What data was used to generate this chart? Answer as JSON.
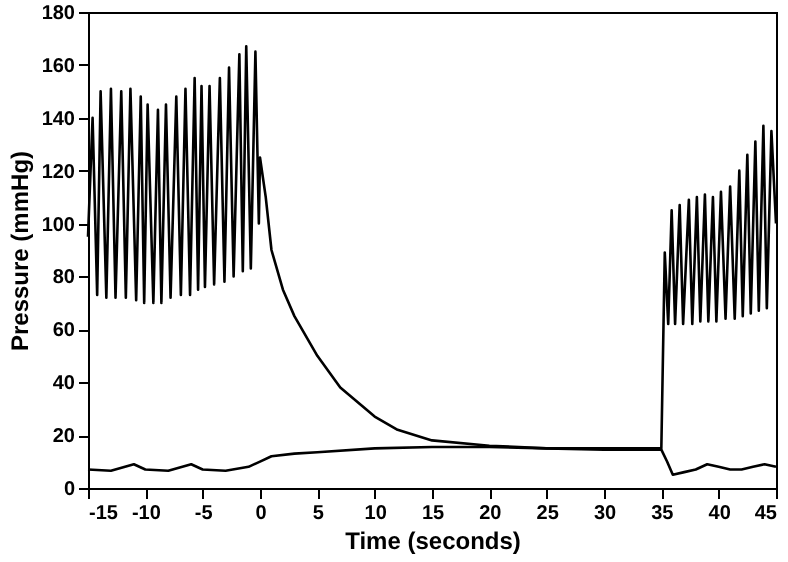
{
  "chart_data": {
    "type": "line",
    "xlabel": "Time (seconds)",
    "ylabel": "Pressure (mmHg)",
    "xlim": [
      -15,
      45
    ],
    "ylim": [
      0,
      180
    ],
    "xticks": [
      -15,
      -10,
      -5,
      0,
      5,
      10,
      15,
      20,
      25,
      30,
      35,
      40,
      45
    ],
    "yticks": [
      0,
      20,
      40,
      60,
      80,
      100,
      120,
      140,
      160,
      180
    ],
    "grid": false,
    "line_style": "solid",
    "marker": "none",
    "series": [
      {
        "color": "#000000",
        "x": [
          -15,
          -14.6,
          -14.2,
          -13.9,
          -13.4,
          -13.0,
          -12.6,
          -12.1,
          -11.7,
          -11.3,
          -10.8,
          -10.4,
          -10.1,
          -9.8,
          -9.3,
          -8.9,
          -8.6,
          -8.2,
          -7.8,
          -7.3,
          -6.9,
          -6.5,
          -6.1,
          -5.7,
          -5.4,
          -5.1,
          -4.8,
          -4.4,
          -4.0,
          -3.5,
          -3.1,
          -2.7,
          -2.3,
          -1.8,
          -1.5,
          -1.2,
          -0.8,
          -0.4,
          -0.1,
          0,
          0.5,
          1,
          2,
          3,
          5,
          7,
          10,
          12,
          15,
          20,
          25,
          30,
          35,
          35.3,
          35.6,
          35.9,
          36.2,
          36.6,
          36.9,
          37.4,
          37.7,
          38.1,
          38.4,
          38.8,
          39.1,
          39.5,
          39.8,
          40.2,
          40.6,
          41.0,
          41.4,
          41.8,
          42.1,
          42.5,
          42.8,
          43.2,
          43.5,
          43.9,
          44.2,
          44.6,
          45
        ],
        "values": [
          95,
          140,
          73,
          150,
          72,
          151,
          72,
          150,
          72,
          151,
          71,
          148,
          70,
          145,
          70,
          143,
          70,
          145,
          72,
          148,
          73,
          151,
          73,
          155,
          75,
          152,
          76,
          152,
          77,
          155,
          78,
          159,
          80,
          164,
          82,
          167,
          83,
          165,
          100,
          125,
          110,
          90,
          75,
          65,
          50,
          38,
          27,
          22,
          18,
          16,
          15,
          15,
          15,
          89,
          62,
          105,
          62,
          107,
          62,
          109,
          62,
          110,
          63,
          111,
          63,
          110,
          63,
          112,
          64,
          114,
          64,
          120,
          65,
          126,
          66,
          131,
          67,
          137,
          68,
          135,
          100
        ]
      },
      {
        "color": "#000000",
        "x": [
          -15,
          -13,
          -11,
          -10,
          -8,
          -6,
          -5,
          -3,
          -1,
          0,
          1,
          3,
          5,
          10,
          15,
          20,
          25,
          30,
          35,
          35.5,
          36,
          37,
          38,
          39,
          40,
          41,
          42,
          43,
          44,
          45
        ],
        "values": [
          7,
          6.5,
          9,
          7,
          6.5,
          9,
          7,
          6.5,
          8,
          10,
          12,
          13,
          13.5,
          15,
          15.5,
          15.5,
          15,
          14.5,
          14.5,
          10,
          5,
          6,
          7,
          9,
          8,
          7,
          7,
          8,
          9,
          8
        ]
      }
    ]
  }
}
